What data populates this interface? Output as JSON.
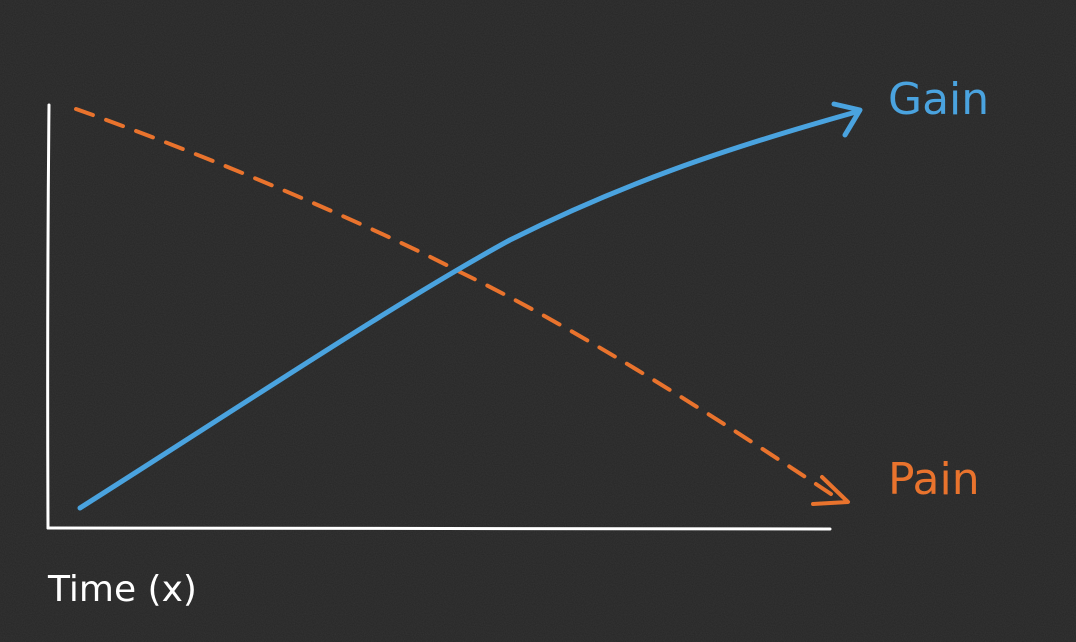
{
  "curves": {
    "gain": {
      "label": "Gain",
      "color": "#4aa3df"
    },
    "pain": {
      "label": "Pain",
      "color": "#e9732d"
    }
  },
  "axes": {
    "x_label": "Time (x)",
    "color": "#ffffff"
  },
  "background_color": "#262626"
}
